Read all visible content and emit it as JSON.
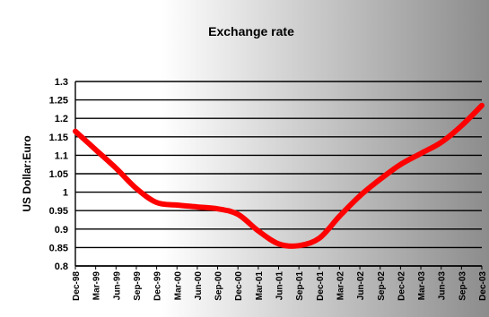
{
  "chart_data": {
    "type": "line",
    "title": "Exchange rate",
    "xlabel": "",
    "ylabel": "US Dollar:Euro",
    "ylim": [
      0.8,
      1.3
    ],
    "yticks": [
      "1.3",
      "1.25",
      "1.2",
      "1.15",
      "1.1",
      "1.05",
      "1",
      "0.95",
      "0.9",
      "0.85",
      "0.8"
    ],
    "grid": true,
    "legend": "none",
    "line_color": "#ff0000",
    "categories": [
      "Dec-98",
      "Mar-99",
      "Jun-99",
      "Sep-99",
      "Dec-99",
      "Mar-00",
      "Jun-00",
      "Sep-00",
      "Dec-00",
      "Mar-01",
      "Jun-01",
      "Sep-01",
      "Dec-01",
      "Mar-02",
      "Jun-02",
      "Sep-02",
      "Dec-02",
      "Mar-03",
      "Jun-03",
      "Sep-03",
      "Dec-03"
    ],
    "series": [
      {
        "values": [
          1.165,
          1.115,
          1.065,
          1.01,
          0.972,
          0.965,
          0.96,
          0.955,
          0.94,
          0.895,
          0.86,
          0.855,
          0.875,
          0.935,
          0.99,
          1.035,
          1.075,
          1.105,
          1.135,
          1.18,
          1.235
        ]
      }
    ]
  }
}
